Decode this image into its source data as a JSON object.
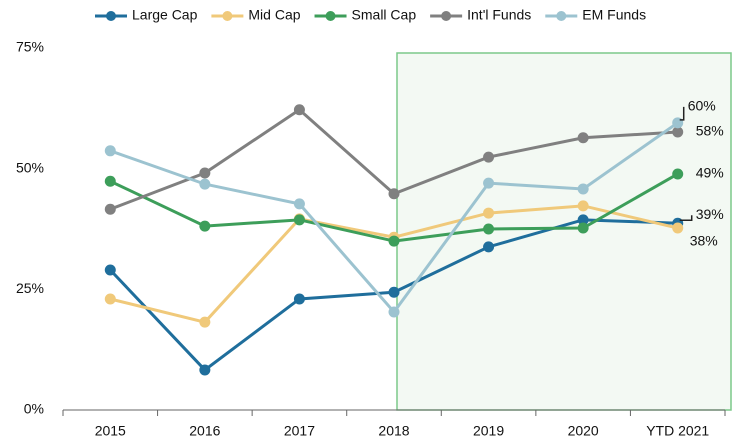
{
  "chart_data": {
    "type": "line",
    "categories": [
      "2015",
      "2016",
      "2017",
      "2018",
      "2019",
      "2020",
      "YTD 2021"
    ],
    "series": [
      {
        "name": "Large Cap",
        "color": "#1f6e9c",
        "values": [
          29,
          8.3,
          23,
          24.4,
          33.8,
          39.4,
          38.7
        ],
        "value_labels": [
          null,
          null,
          null,
          null,
          null,
          null,
          "39%"
        ]
      },
      {
        "name": "Mid Cap",
        "color": "#f0c97a",
        "values": [
          23,
          18.2,
          39.6,
          35.8,
          40.8,
          42.3,
          37.7
        ],
        "value_labels": [
          null,
          null,
          null,
          null,
          null,
          null,
          "38%"
        ]
      },
      {
        "name": "Small Cap",
        "color": "#3d9e5a",
        "values": [
          47.4,
          38.1,
          39.4,
          35,
          37.5,
          37.7,
          48.9
        ],
        "value_labels": [
          null,
          null,
          null,
          null,
          null,
          null,
          "49%"
        ]
      },
      {
        "name": "Int'l Funds",
        "color": "#808080",
        "values": [
          41.6,
          49.1,
          62.2,
          44.8,
          52.4,
          56.4,
          57.6
        ],
        "value_labels": [
          null,
          null,
          null,
          null,
          null,
          null,
          "58%"
        ]
      },
      {
        "name": "EM Funds",
        "color": "#9cc3d0",
        "values": [
          53.7,
          46.8,
          42.7,
          20.3,
          47,
          45.8,
          59.5
        ],
        "value_labels": [
          null,
          null,
          null,
          null,
          null,
          null,
          "60%"
        ]
      }
    ],
    "ylim": [
      0,
      75
    ],
    "yticks": [
      {
        "value": 0,
        "label": "0%"
      },
      {
        "value": 25,
        "label": "25%"
      },
      {
        "value": 50,
        "label": "50%"
      },
      {
        "value": 75,
        "label": "75%"
      }
    ],
    "legend": "top"
  }
}
